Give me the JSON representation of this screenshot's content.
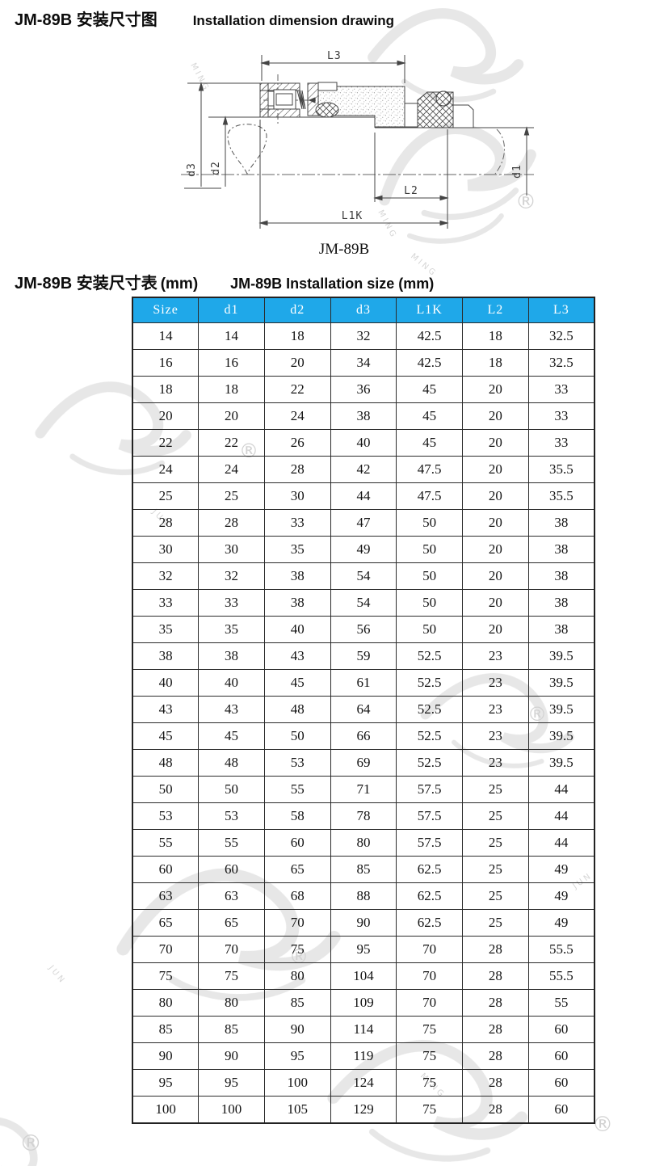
{
  "header": {
    "title_zh": "JM-89B 安装尺寸图",
    "title_en": "Installation dimension drawing"
  },
  "table_section": {
    "title_zh": "JM-89B 安装尺寸表",
    "title_unit": "(mm)",
    "title_en": "JM-89B Installation size (mm)"
  },
  "drawing": {
    "caption": "JM-89B",
    "dim_labels": {
      "l3": "L3",
      "d3": "d3",
      "d2": "d2",
      "d1": "d1",
      "l2": "L2",
      "l1k": "L1K"
    }
  },
  "colors": {
    "header_bg": "#1fa8e9",
    "table_border": "#2b2b2b"
  },
  "watermark": {
    "reg": "®",
    "jun": "JUN",
    "ming": "MING"
  },
  "table": {
    "columns": [
      "Size",
      "d1",
      "d2",
      "d3",
      "L1K",
      "L2",
      "L3"
    ],
    "rows": [
      [
        "14",
        "14",
        "18",
        "32",
        "42.5",
        "18",
        "32.5"
      ],
      [
        "16",
        "16",
        "20",
        "34",
        "42.5",
        "18",
        "32.5"
      ],
      [
        "18",
        "18",
        "22",
        "36",
        "45",
        "20",
        "33"
      ],
      [
        "20",
        "20",
        "24",
        "38",
        "45",
        "20",
        "33"
      ],
      [
        "22",
        "22",
        "26",
        "40",
        "45",
        "20",
        "33"
      ],
      [
        "24",
        "24",
        "28",
        "42",
        "47.5",
        "20",
        "35.5"
      ],
      [
        "25",
        "25",
        "30",
        "44",
        "47.5",
        "20",
        "35.5"
      ],
      [
        "28",
        "28",
        "33",
        "47",
        "50",
        "20",
        "38"
      ],
      [
        "30",
        "30",
        "35",
        "49",
        "50",
        "20",
        "38"
      ],
      [
        "32",
        "32",
        "38",
        "54",
        "50",
        "20",
        "38"
      ],
      [
        "33",
        "33",
        "38",
        "54",
        "50",
        "20",
        "38"
      ],
      [
        "35",
        "35",
        "40",
        "56",
        "50",
        "20",
        "38"
      ],
      [
        "38",
        "38",
        "43",
        "59",
        "52.5",
        "23",
        "39.5"
      ],
      [
        "40",
        "40",
        "45",
        "61",
        "52.5",
        "23",
        "39.5"
      ],
      [
        "43",
        "43",
        "48",
        "64",
        "52.5",
        "23",
        "39.5"
      ],
      [
        "45",
        "45",
        "50",
        "66",
        "52.5",
        "23",
        "39.5"
      ],
      [
        "48",
        "48",
        "53",
        "69",
        "52.5",
        "23",
        "39.5"
      ],
      [
        "50",
        "50",
        "55",
        "71",
        "57.5",
        "25",
        "44"
      ],
      [
        "53",
        "53",
        "58",
        "78",
        "57.5",
        "25",
        "44"
      ],
      [
        "55",
        "55",
        "60",
        "80",
        "57.5",
        "25",
        "44"
      ],
      [
        "60",
        "60",
        "65",
        "85",
        "62.5",
        "25",
        "49"
      ],
      [
        "63",
        "63",
        "68",
        "88",
        "62.5",
        "25",
        "49"
      ],
      [
        "65",
        "65",
        "70",
        "90",
        "62.5",
        "25",
        "49"
      ],
      [
        "70",
        "70",
        "75",
        "95",
        "70",
        "28",
        "55.5"
      ],
      [
        "75",
        "75",
        "80",
        "104",
        "70",
        "28",
        "55.5"
      ],
      [
        "80",
        "80",
        "85",
        "109",
        "70",
        "28",
        "55"
      ],
      [
        "85",
        "85",
        "90",
        "114",
        "75",
        "28",
        "60"
      ],
      [
        "90",
        "90",
        "95",
        "119",
        "75",
        "28",
        "60"
      ],
      [
        "95",
        "95",
        "100",
        "124",
        "75",
        "28",
        "60"
      ],
      [
        "100",
        "100",
        "105",
        "129",
        "75",
        "28",
        "60"
      ]
    ]
  }
}
